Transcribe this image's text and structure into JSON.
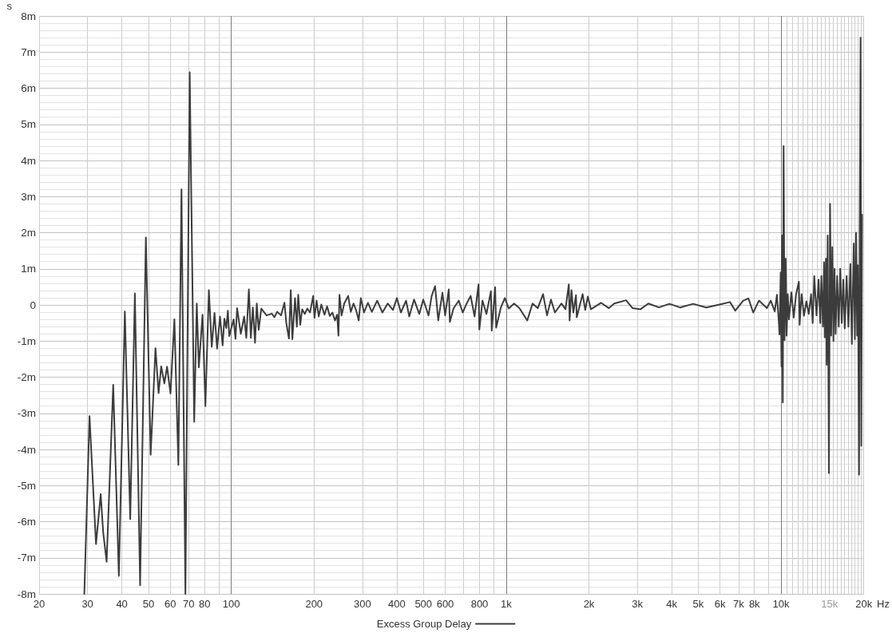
{
  "chart_data": {
    "type": "line",
    "ylabel": "s",
    "xlabel": "Hz",
    "log": "x",
    "grid": true,
    "legend": "bottom",
    "line_style": "solid",
    "xlim": [
      20,
      20000
    ],
    "ylim": [
      -8,
      8
    ],
    "xticks": [
      20,
      30,
      40,
      50,
      60,
      70,
      80,
      {
        "value": 90,
        "label": null
      },
      100,
      200,
      300,
      400,
      500,
      600,
      {
        "value": 700,
        "label": null
      },
      800,
      {
        "value": 900,
        "label": null
      },
      {
        "value": 1000,
        "label": "1k"
      },
      {
        "value": 2000,
        "label": "2k"
      },
      {
        "value": 3000,
        "label": "3k"
      },
      {
        "value": 4000,
        "label": "4k"
      },
      {
        "value": 5000,
        "label": "5k"
      },
      {
        "value": 6000,
        "label": "6k"
      },
      {
        "value": 7000,
        "label": "7k"
      },
      {
        "value": 8000,
        "label": "8k"
      },
      {
        "value": 9000,
        "label": null
      },
      {
        "value": 10000,
        "label": "10k"
      },
      {
        "value": 10500,
        "label": null
      },
      {
        "value": 11000,
        "label": null
      },
      {
        "value": 11500,
        "label": null
      },
      {
        "value": 12000,
        "label": null
      },
      {
        "value": 12500,
        "label": null
      },
      {
        "value": 13000,
        "label": null
      },
      {
        "value": 13500,
        "label": null
      },
      {
        "value": 14000,
        "label": null
      },
      {
        "value": 14500,
        "label": null
      },
      {
        "value": 15000,
        "label": "15k"
      },
      {
        "value": 15500,
        "label": null
      },
      {
        "value": 16000,
        "label": null
      },
      {
        "value": 16500,
        "label": null
      },
      {
        "value": 17000,
        "label": null
      },
      {
        "value": 17500,
        "label": null
      },
      {
        "value": 18000,
        "label": null
      },
      {
        "value": 18500,
        "label": null
      },
      {
        "value": 19000,
        "label": null
      },
      {
        "value": 19500,
        "label": null
      },
      {
        "value": 20000,
        "label": "20k"
      }
    ],
    "yticks": [
      {
        "value": -8,
        "label": "-8m"
      },
      {
        "value": -7.8,
        "label": null
      },
      {
        "value": -7.6,
        "label": null
      },
      {
        "value": -7.4,
        "label": null
      },
      {
        "value": -7.2,
        "label": null
      },
      {
        "value": -7,
        "label": "-7m"
      },
      {
        "value": -6.8,
        "label": null
      },
      {
        "value": -6.6,
        "label": null
      },
      {
        "value": -6.4,
        "label": null
      },
      {
        "value": -6.2,
        "label": null
      },
      {
        "value": -6,
        "label": "-6m"
      },
      {
        "value": -5.8,
        "label": null
      },
      {
        "value": -5.6,
        "label": null
      },
      {
        "value": -5.4,
        "label": null
      },
      {
        "value": -5.2,
        "label": null
      },
      {
        "value": -5,
        "label": "-5m"
      },
      {
        "value": -4.8,
        "label": null
      },
      {
        "value": -4.6,
        "label": null
      },
      {
        "value": -4.4,
        "label": null
      },
      {
        "value": -4.2,
        "label": null
      },
      {
        "value": -4,
        "label": "-4m"
      },
      {
        "value": -3.8,
        "label": null
      },
      {
        "value": -3.6,
        "label": null
      },
      {
        "value": -3.4,
        "label": null
      },
      {
        "value": -3.2,
        "label": null
      },
      {
        "value": -3,
        "label": "-3m"
      },
      {
        "value": -2.8,
        "label": null
      },
      {
        "value": -2.6,
        "label": null
      },
      {
        "value": -2.4,
        "label": null
      },
      {
        "value": -2.2,
        "label": null
      },
      {
        "value": -2,
        "label": "-2m"
      },
      {
        "value": -1.8,
        "label": null
      },
      {
        "value": -1.6,
        "label": null
      },
      {
        "value": -1.4,
        "label": null
      },
      {
        "value": -1.2,
        "label": null
      },
      {
        "value": -1,
        "label": "-1m"
      },
      {
        "value": -0.8,
        "label": null
      },
      {
        "value": -0.6,
        "label": null
      },
      {
        "value": -0.4,
        "label": null
      },
      {
        "value": -0.2,
        "label": null
      },
      0,
      {
        "value": 0.2,
        "label": null
      },
      {
        "value": 0.4,
        "label": null
      },
      {
        "value": 0.6,
        "label": null
      },
      {
        "value": 0.8,
        "label": null
      },
      {
        "value": 1,
        "label": "1m"
      },
      {
        "value": 1.2,
        "label": null
      },
      {
        "value": 1.4,
        "label": null
      },
      {
        "value": 1.6,
        "label": null
      },
      {
        "value": 1.8,
        "label": null
      },
      {
        "value": 2,
        "label": "2m"
      },
      {
        "value": 2.2,
        "label": null
      },
      {
        "value": 2.4,
        "label": null
      },
      {
        "value": 2.6,
        "label": null
      },
      {
        "value": 2.8,
        "label": null
      },
      {
        "value": 3,
        "label": "3m"
      },
      {
        "value": 3.2,
        "label": null
      },
      {
        "value": 3.4,
        "label": null
      },
      {
        "value": 3.6,
        "label": null
      },
      {
        "value": 3.8,
        "label": null
      },
      {
        "value": 4,
        "label": "4m"
      },
      {
        "value": 4.2,
        "label": null
      },
      {
        "value": 4.4,
        "label": null
      },
      {
        "value": 4.6,
        "label": null
      },
      {
        "value": 4.8,
        "label": null
      },
      {
        "value": 5,
        "label": "5m"
      },
      {
        "value": 5.2,
        "label": null
      },
      {
        "value": 5.4,
        "label": null
      },
      {
        "value": 5.6,
        "label": null
      },
      {
        "value": 5.8,
        "label": null
      },
      {
        "value": 6,
        "label": "6m"
      },
      {
        "value": 6.2,
        "label": null
      },
      {
        "value": 6.4,
        "label": null
      },
      {
        "value": 6.6,
        "label": null
      },
      {
        "value": 6.8,
        "label": null
      },
      {
        "value": 7,
        "label": "7m"
      },
      {
        "value": 7.2,
        "label": null
      },
      {
        "value": 7.4,
        "label": null
      },
      {
        "value": 7.6,
        "label": null
      },
      {
        "value": 7.8,
        "label": null
      },
      {
        "value": 8,
        "label": "8m"
      }
    ],
    "x": [
      29.2,
      30.5,
      32.2,
      33.5,
      34.2,
      35.2,
      37.2,
      39,
      41,
      42.9,
      44.6,
      46.6,
      48.9,
      50.9,
      53,
      54.4,
      55.6,
      57.1,
      58.4,
      60.1,
      62.1,
      64.2,
      65.9,
      68.1,
      70.6,
      73.3,
      74.9,
      76.2,
      78.6,
      80.5,
      82.9,
      84.9,
      86.9,
      88.8,
      91,
      93,
      94.4,
      95.9,
      97.2,
      98.3,
      102,
      103.6,
      105,
      108.3,
      111.4,
      113.4,
      115.9,
      117.8,
      119.8,
      122,
      123.8,
      125.8,
      128.6,
      134.4,
      140.4,
      143.6,
      146.8,
      151.7,
      156.1,
      158.6,
      162.1,
      164.6,
      166.8,
      170.6,
      173.2,
      175.2,
      178.2,
      181.1,
      185,
      189.1,
      193.4,
      198.6,
      200.7,
      204.3,
      208,
      212.6,
      218.3,
      223.1,
      228.2,
      233.2,
      238.4,
      242.7,
      245.4,
      247.5,
      252,
      257.5,
      266.2,
      272.1,
      278.3,
      284.4,
      290.8,
      296,
      304,
      314.1,
      324.7,
      339.4,
      354.6,
      370.7,
      387.4,
      400.5,
      414,
      432.4,
      444,
      462.1,
      483,
      499.3,
      521.8,
      535.8,
      551.3,
      566.1,
      586.3,
      599.7,
      618.2,
      623.9,
      643.2,
      672.4,
      695,
      718.3,
      742.5,
      767.5,
      793.2,
      798.6,
      820,
      847.6,
      880.1,
      886,
      911.7,
      919.4,
      956.5,
      988.8,
      1022,
      1068,
      1117,
      1193,
      1247,
      1303,
      1362,
      1408,
      1455,
      1504,
      1589,
      1643,
      1690,
      1701,
      1728,
      1755,
      1794,
      1806,
      1897,
      1939,
      1981,
      2034,
      2213,
      2364,
      2471,
      2729,
      2883,
      3080,
      3290,
      3593,
      3926,
      4288,
      4787,
      5346,
      5970,
      6520,
      6813,
      7280,
      7609,
      7918,
      8308,
      8880,
      9177,
      9484,
      9656,
      9804,
      9870,
      9968,
      10032,
      10086,
      10146,
      10214,
      10295,
      10392,
      10474,
      10578,
      10683,
      10898,
      11117,
      11340,
      11605,
      11681,
      11876,
      12114,
      12359,
      12606,
      12859,
      13029,
      13204,
      13459,
      13694,
      13884,
      14016,
      14199,
      14331,
      14417,
      14561,
      14648,
      14774,
      14931,
      15073,
      15212,
      15364,
      15506,
      15650,
      15787,
      15996,
      16211,
      16414,
      16624,
      16832,
      17043,
      17316,
      17582,
      17865,
      18093,
      18384,
      18554,
      18739,
      18912,
      19026,
      19215,
      19331,
      19461,
      19577,
      19704
    ],
    "series": [
      {
        "name": "Excess Group Delay",
        "color": "#3c3c3c",
        "values": [
          -8,
          -3.08,
          -6.62,
          -5.24,
          -6.29,
          -7.11,
          -2.21,
          -7.5,
          -0.18,
          -5.93,
          0.32,
          -7.76,
          1.87,
          -4.15,
          -1.2,
          -2.44,
          -1.7,
          -2.17,
          -1.71,
          -2.45,
          -0.4,
          -4.43,
          3.2,
          -8,
          6.44,
          -3.23,
          0.04,
          -1.73,
          -0.27,
          -2.8,
          0.41,
          -1.16,
          -0.22,
          -1.21,
          -0.32,
          -1.12,
          -0.38,
          -0.64,
          -0.16,
          -0.86,
          -0.4,
          -0.94,
          -0.09,
          -0.8,
          -0.32,
          -0.91,
          0.43,
          -0.91,
          -0.07,
          -1.05,
          0.04,
          -0.69,
          -0.1,
          -0.29,
          -0.24,
          -0.34,
          -0.19,
          -0.29,
          0.06,
          -0.51,
          -0.93,
          0.41,
          -0.95,
          0.19,
          -0.6,
          0.28,
          -0.55,
          -0.12,
          -0.25,
          -0.1,
          -0.21,
          0.25,
          -0.36,
          0.12,
          -0.32,
          0.01,
          -0.27,
          -0.04,
          -0.31,
          -0.21,
          -0.43,
          -0.27,
          -0.85,
          0.28,
          -0.29,
          0.04,
          0.25,
          -0.19,
          0.04,
          -0.14,
          -0.43,
          0.19,
          -0.21,
          0.06,
          -0.19,
          0.12,
          -0.21,
          0.04,
          -0.14,
          0.19,
          -0.21,
          0.12,
          -0.32,
          0.15,
          -0.25,
          0.15,
          -0.29,
          0.25,
          0.52,
          -0.43,
          0.34,
          -0.29,
          0.43,
          -0.47,
          -0.1,
          0.12,
          -0.21,
          0.04,
          0.25,
          -0.32,
          0.57,
          -0.68,
          0.12,
          -0.25,
          0.38,
          -0.71,
          0.49,
          -0.63,
          -0.07,
          0.19,
          -0.1,
          0.04,
          -0.09,
          -0.43,
          0.04,
          -0.09,
          0.3,
          -0.29,
          0.15,
          -0.21,
          0.04,
          -0.12,
          0.57,
          -0.43,
          0.41,
          -0.21,
          0.27,
          -0.34,
          0.3,
          -0.14,
          0.23,
          -0.12,
          0.06,
          -0.09,
          0.04,
          0.13,
          -0.09,
          -0.12,
          0.04,
          -0.07,
          0.03,
          -0.07,
          0.03,
          -0.07,
          0.01,
          0.08,
          -0.16,
          0.12,
          0.18,
          -0.21,
          0.12,
          -0.09,
          0.12,
          -0.18,
          0.28,
          -0.43,
          -0.82,
          0.9,
          -1.7,
          1.92,
          -2.7,
          4.4,
          -0.97,
          1.28,
          -0.85,
          0.3,
          -0.4,
          0.35,
          -0.35,
          0.3,
          0.64,
          -0.55,
          0.3,
          -0.3,
          0.1,
          -0.25,
          0.3,
          -0.5,
          0.8,
          -0.29,
          0.7,
          -0.5,
          0.8,
          -0.6,
          1.18,
          -0.9,
          1.28,
          -1.66,
          1.92,
          -4.66,
          2.8,
          -0.85,
          1.6,
          -1,
          1,
          -0.8,
          0.8,
          -0.6,
          1,
          -0.5,
          0.7,
          -0.65,
          0.8,
          -0.6,
          1.13,
          -1.08,
          1.7,
          -0.95,
          2,
          -0.85,
          1.1,
          -4.7,
          2.1,
          7.4,
          -3.9,
          2.5
        ]
      }
    ]
  }
}
